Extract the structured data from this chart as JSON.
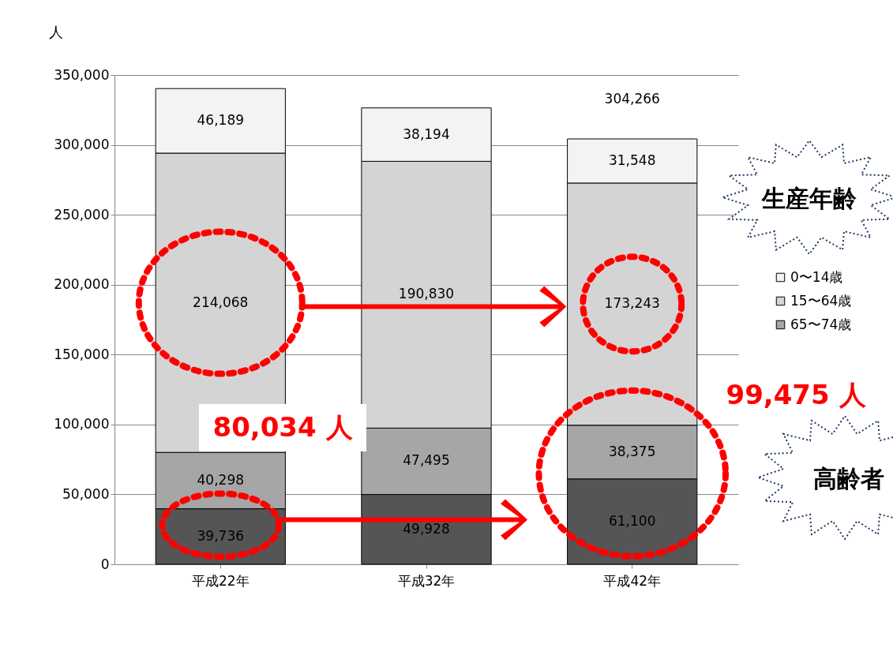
{
  "chart_data": {
    "type": "bar",
    "stacked": true,
    "ylabel": "人",
    "categories": [
      "平成22年",
      "平成32年",
      "平成42年"
    ],
    "series": [
      {
        "color": "#555555",
        "values": [
          39736,
          49928,
          61100
        ],
        "value_labels": [
          "39,736",
          "49,928",
          "61,100"
        ]
      },
      {
        "name": "65〜74歳",
        "color": "#a6a6a6",
        "values": [
          40298,
          47495,
          38375
        ],
        "value_labels": [
          "40,298",
          "47,495",
          "38,375"
        ]
      },
      {
        "name": "15〜64歳",
        "color": "#d4d4d4",
        "values": [
          214068,
          190830,
          173243
        ],
        "value_labels": [
          "214,068",
          "190,830",
          "173,243"
        ]
      },
      {
        "name": "0〜14歳",
        "color": "#f3f3f3",
        "values": [
          46189,
          38194,
          31548
        ],
        "value_labels": [
          "46,189",
          "38,194",
          "31,548"
        ]
      }
    ],
    "ylim": [
      0,
      350000
    ],
    "yticks": [
      0,
      {
        "value": 50000,
        "label": "50,000"
      },
      {
        "value": 100000,
        "label": "100,000"
      },
      {
        "value": 150000,
        "label": "150,000"
      },
      {
        "value": 200000,
        "label": "200,000"
      },
      {
        "value": 250000,
        "label": "250,000"
      },
      {
        "value": 300000,
        "label": "300,000"
      },
      {
        "value": 350000,
        "label": "350,000"
      }
    ],
    "grid": "y",
    "legend": "right",
    "totals": [
      null,
      null,
      "304,266"
    ],
    "annotations": [
      "80,034 人",
      "99,475 人",
      "生産年齢",
      "高齢者"
    ]
  }
}
